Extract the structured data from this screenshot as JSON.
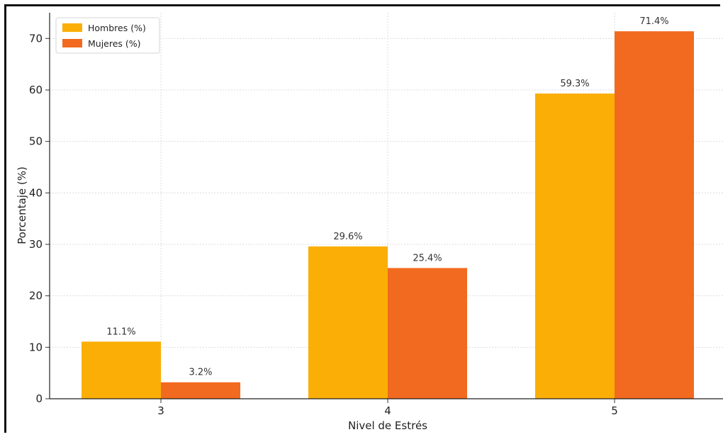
{
  "chart_data": {
    "type": "bar",
    "title": "",
    "xlabel": "Nivel de Estrés",
    "ylabel": "Porcentaje (%)",
    "categories": [
      "3",
      "4",
      "5"
    ],
    "ylim": [
      0,
      75
    ],
    "yticks": [
      0,
      10,
      20,
      30,
      40,
      50,
      60,
      70
    ],
    "grid": true,
    "legend_position": "top-left",
    "series": [
      {
        "name": "Hombres (%)",
        "color": "#FBAE05",
        "values": [
          11.1,
          29.6,
          59.3
        ],
        "labels": [
          "11.1%",
          "29.6%",
          "59.3%"
        ]
      },
      {
        "name": "Mujeres (%)",
        "color": "#F26A1F",
        "values": [
          3.2,
          25.4,
          71.4
        ],
        "labels": [
          "3.2%",
          "25.4%",
          "71.4%"
        ]
      }
    ]
  }
}
